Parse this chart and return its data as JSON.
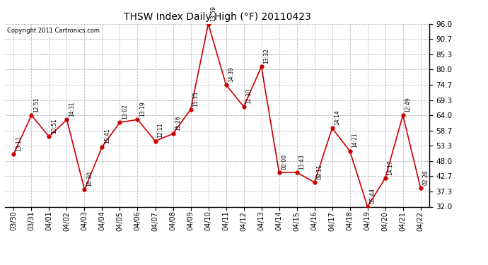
{
  "title": "THSW Index Daily High (°F) 20110423",
  "copyright": "Copyright 2011 Cartronics.com",
  "line_color": "#cc0000",
  "marker_color": "#cc0000",
  "background_color": "#ffffff",
  "grid_color": "#bbbbbb",
  "x_labels": [
    "03/30",
    "03/31",
    "04/01",
    "04/02",
    "04/03",
    "04/04",
    "04/05",
    "04/06",
    "04/07",
    "04/08",
    "04/09",
    "04/10",
    "04/11",
    "04/12",
    "04/13",
    "04/14",
    "04/15",
    "04/16",
    "04/17",
    "04/18",
    "04/19",
    "04/20",
    "04/21",
    "04/22"
  ],
  "y_values": [
    50.5,
    64.0,
    56.5,
    62.5,
    38.0,
    53.0,
    61.5,
    62.5,
    55.0,
    57.5,
    66.0,
    96.0,
    74.7,
    67.0,
    81.0,
    44.0,
    44.0,
    40.5,
    59.5,
    51.5,
    32.0,
    42.0,
    64.0,
    38.5
  ],
  "point_labels": [
    "13:11",
    "12:51",
    "10:51",
    "14:31",
    "16:30",
    "15:41",
    "13:02",
    "13:19",
    "12:11",
    "15:26",
    "15:35",
    "13:59",
    "14:39",
    "12:30",
    "13:32",
    "00:00",
    "13:43",
    "09:11",
    "14:14",
    "14:21",
    "05:44",
    "14:17",
    "12:49",
    "02:26"
  ],
  "ylim": [
    32.0,
    96.0
  ],
  "yticks": [
    32.0,
    37.3,
    42.7,
    48.0,
    53.3,
    58.7,
    64.0,
    69.3,
    74.7,
    80.0,
    85.3,
    90.7,
    96.0
  ]
}
